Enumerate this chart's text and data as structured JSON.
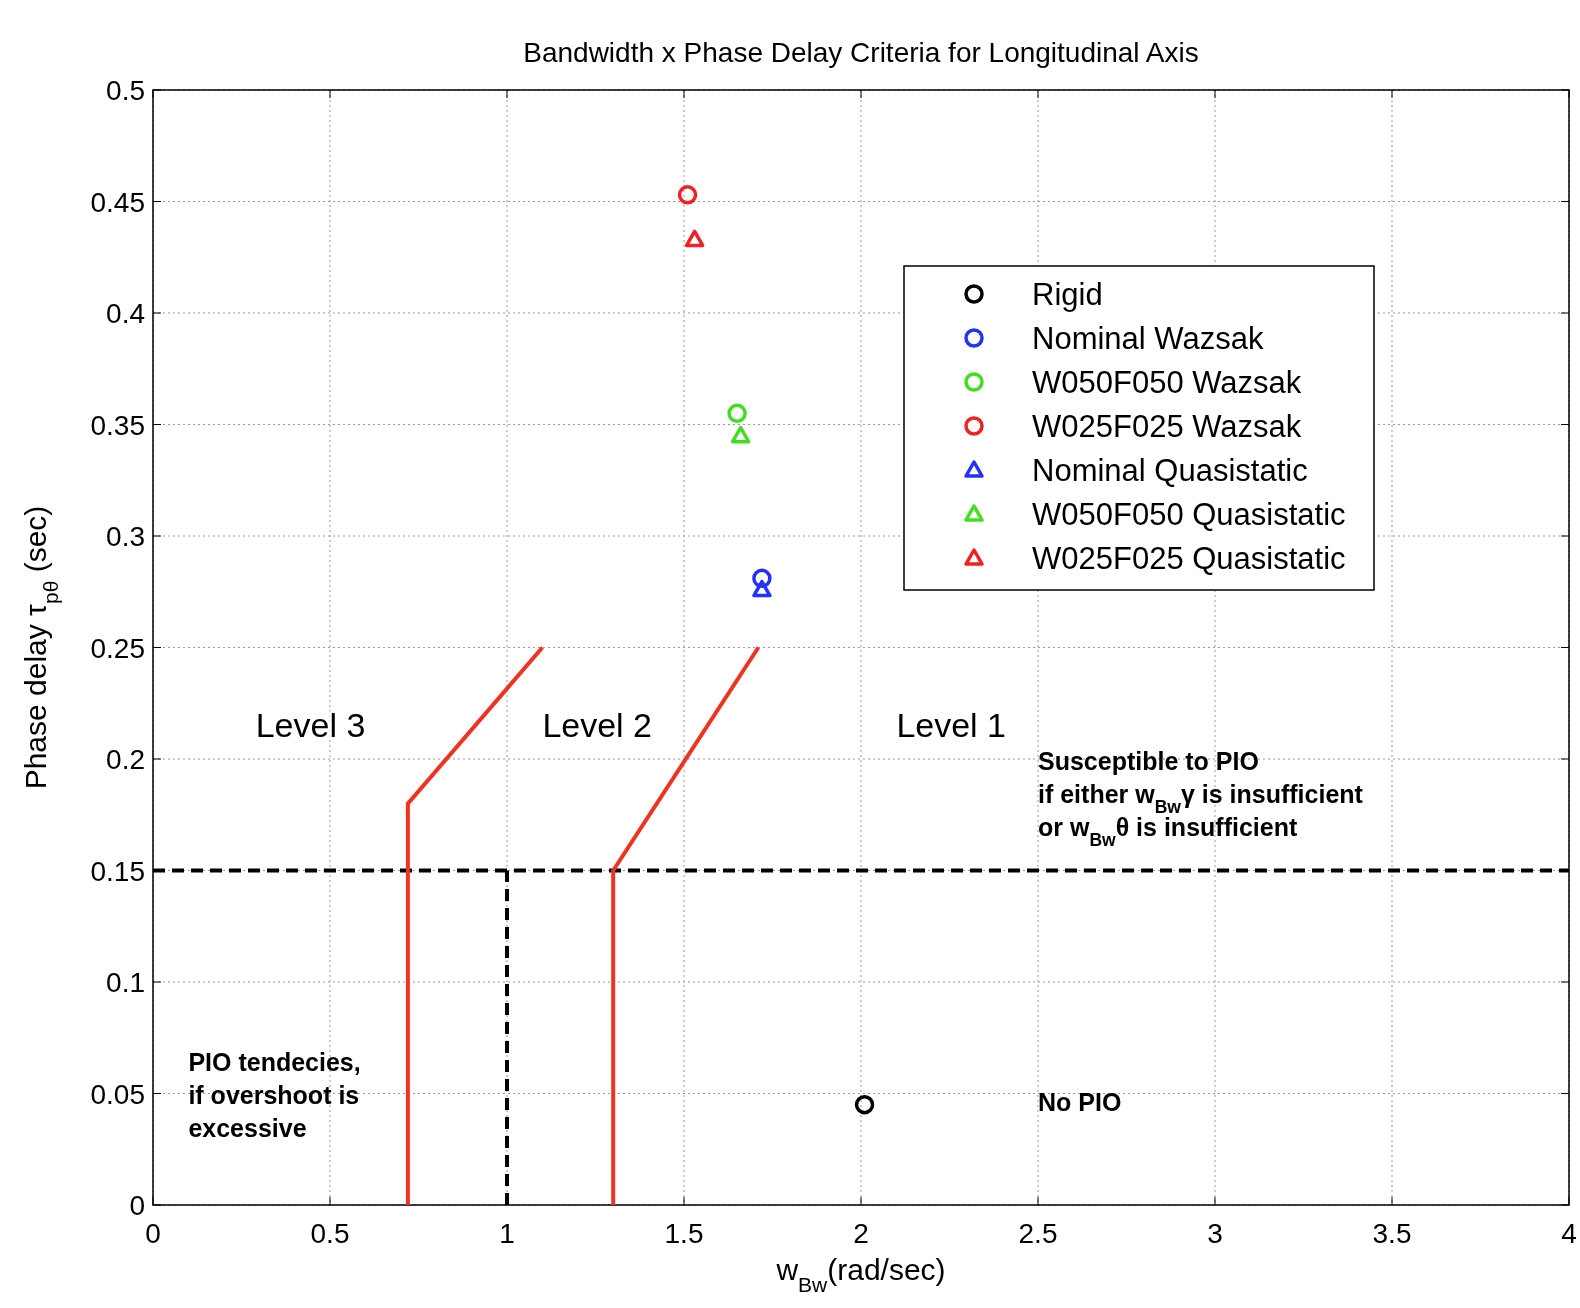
{
  "chart_data": {
    "type": "scatter",
    "title": "Bandwidth x Phase Delay Criteria for Longitudinal Axis",
    "xlabel": "w$_{Bw}$(rad/sec)",
    "ylabel": "Phase delay τ$_{pθ}$ (sec)",
    "xlim": [
      0,
      4
    ],
    "xticks": [
      0,
      0.5,
      1,
      1.5,
      2,
      2.5,
      3,
      3.5,
      4
    ],
    "ylim": [
      0,
      0.5
    ],
    "yticks": [
      0,
      0.05,
      0.1,
      0.15,
      0.2,
      0.25,
      0.3,
      0.35,
      0.4,
      0.45,
      0.5
    ],
    "grid": true,
    "legend": "top right",
    "series": [
      {
        "name": "Rigid",
        "color": "#000000",
        "marker": "circle",
        "x": [
          2.01
        ],
        "values": [
          0.045
        ]
      },
      {
        "name": "Nominal Wazsak",
        "color": "#2233ff",
        "marker": "circle",
        "x": [
          1.72
        ],
        "values": [
          0.281
        ]
      },
      {
        "name": "W050F050 Wazsak",
        "color": "#44dd22",
        "marker": "circle",
        "x": [
          1.65
        ],
        "values": [
          0.355
        ]
      },
      {
        "name": "W025F025 Wazsak",
        "color": "#ee2222",
        "marker": "circle",
        "x": [
          1.51
        ],
        "values": [
          0.453
        ]
      },
      {
        "name": "Nominal Quasistatic",
        "color": "#2233ff",
        "marker": "triangle",
        "x": [
          1.72
        ],
        "values": [
          0.276
        ]
      },
      {
        "name": "W050F050 Quasistatic",
        "color": "#44dd22",
        "marker": "triangle",
        "x": [
          1.66
        ],
        "values": [
          0.345
        ]
      },
      {
        "name": "W025F025 Quasistatic",
        "color": "#ee2222",
        "marker": "triangle",
        "x": [
          1.53
        ],
        "values": [
          0.433
        ]
      },
      {
        "type": "line",
        "color": "#ee3322",
        "line_style": "solid",
        "x": [
          0.72,
          0.72,
          1.1
        ],
        "values": [
          0,
          0.18,
          0.25
        ]
      },
      {
        "type": "line",
        "color": "#ee3322",
        "line_style": "solid",
        "x": [
          1.3,
          1.3,
          1.71
        ],
        "values": [
          0,
          0.15,
          0.25
        ]
      },
      {
        "type": "line",
        "color": "#000000",
        "line_style": "dashed",
        "x": [
          1,
          1,
          1
        ],
        "values": [
          0,
          0.075,
          0.15
        ]
      }
    ],
    "ref_lines": [
      {
        "axis": "y",
        "value": 0.15,
        "color": "#000000",
        "line_style": "dashed"
      }
    ],
    "annotations": [
      "Level 3",
      "Level 2",
      "Level 1",
      "Susceptible to PIO\nif either w$_{Bw}$γ is insufficient\nor w$_{Bw}$θ is insufficient",
      "PIO tendecies,\nif overshoot is\nexcessive",
      "No PIO"
    ]
  }
}
